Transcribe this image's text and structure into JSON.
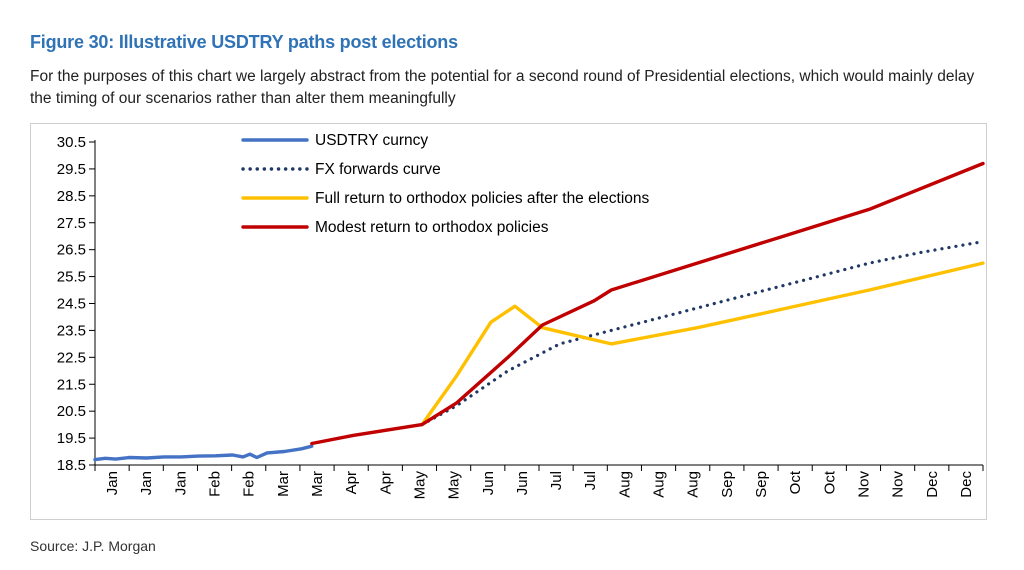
{
  "figure": {
    "title": "Figure 30: Illustrative USDTRY paths post elections",
    "subtitle": "For the purposes of this chart we largely abstract from the potential for a second round of Presidential elections, which would mainly delay the timing of our scenarios rather than alter them meaningfully",
    "source": "Source: J.P. Morgan"
  },
  "chart_data": {
    "type": "line",
    "title": "",
    "xlabel": "",
    "ylabel": "",
    "ylim": [
      18.5,
      30.5
    ],
    "xlim": [
      0,
      25.8
    ],
    "yticks": [
      "18.5",
      "19.5",
      "20.5",
      "21.5",
      "22.5",
      "23.5",
      "24.5",
      "25.5",
      "26.5",
      "27.5",
      "28.5",
      "29.5",
      "30.5"
    ],
    "categories": [
      "Jan",
      "Jan",
      "Jan",
      "Feb",
      "Feb",
      "Mar",
      "Mar",
      "Apr",
      "Apr",
      "May",
      "May",
      "Jun",
      "Jun",
      "Jul",
      "Jul",
      "Aug",
      "Aug",
      "Aug",
      "Sep",
      "Sep",
      "Oct",
      "Oct",
      "Nov",
      "Nov",
      "Dec",
      "Dec"
    ],
    "legend_position": "top-center",
    "series": [
      {
        "name": "USDTRY curncy",
        "color": "#4472c4",
        "style": "solid",
        "x": [
          0,
          0.3,
          0.6,
          1,
          1.5,
          2,
          2.5,
          3,
          3.5,
          4,
          4.3,
          4.5,
          4.7,
          5,
          5.5,
          6,
          6.3
        ],
        "y": [
          18.7,
          18.75,
          18.72,
          18.78,
          18.76,
          18.8,
          18.8,
          18.83,
          18.84,
          18.87,
          18.8,
          18.9,
          18.78,
          18.95,
          19.0,
          19.1,
          19.2
        ]
      },
      {
        "name": "FX forwards curve",
        "color": "#1f3864",
        "style": "dotted",
        "x": [
          9.5,
          10.5,
          12.0,
          13.5,
          15.0,
          16.5,
          18.0,
          19.5,
          21.0,
          22.5,
          24.0,
          25.8
        ],
        "y": [
          20.0,
          20.7,
          22.0,
          23.0,
          23.5,
          24.0,
          24.5,
          25.0,
          25.5,
          26.0,
          26.4,
          26.8
        ]
      },
      {
        "name": "Full return to orthodox policies after the elections",
        "color": "#ffc000",
        "style": "solid",
        "x": [
          9.5,
          10.5,
          11.5,
          12.2,
          13.0,
          14.0,
          15.0,
          17.5,
          20.0,
          22.5,
          25.8
        ],
        "y": [
          20.0,
          21.8,
          23.8,
          24.4,
          23.6,
          23.3,
          23.0,
          23.6,
          24.3,
          25.0,
          26.0
        ]
      },
      {
        "name": "Modest return to orthodox policies",
        "color": "#c00000",
        "style": "solid",
        "x": [
          6.3,
          7.5,
          9.5,
          10.5,
          12.0,
          13.0,
          14.5,
          15.0,
          17.0,
          20.0,
          22.5,
          25.8
        ],
        "y": [
          19.3,
          19.6,
          20.0,
          20.8,
          22.5,
          23.7,
          24.6,
          25.0,
          25.8,
          27.0,
          28.0,
          29.7
        ]
      }
    ]
  }
}
